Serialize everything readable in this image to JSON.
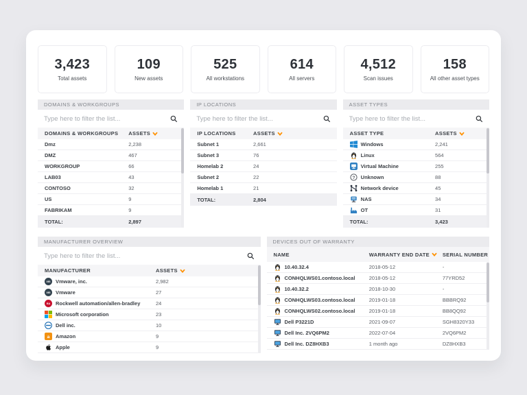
{
  "accent_color": "#ff9100",
  "filter_placeholder": "Type here to filter the list...",
  "stats": [
    {
      "value": "3,423",
      "label": "Total assets"
    },
    {
      "value": "109",
      "label": "New assets"
    },
    {
      "value": "525",
      "label": "All workstations"
    },
    {
      "value": "614",
      "label": "All servers"
    },
    {
      "value": "4,512",
      "label": "Scan issues"
    },
    {
      "value": "158",
      "label": "All other asset types"
    }
  ],
  "panels": {
    "domains": {
      "title": "DOMAINS & WORKGROUPS",
      "columns": [
        "DOMAINS & WORKGROUPS",
        "ASSETS"
      ],
      "sorted_by": "ASSETS",
      "rows": [
        {
          "label": "Dmz",
          "value": "2,238"
        },
        {
          "label": "DMZ",
          "value": "467"
        },
        {
          "label": "WORKGROUP",
          "value": "66"
        },
        {
          "label": "LAB03",
          "value": "43"
        },
        {
          "label": "CONTOSO",
          "value": "32"
        },
        {
          "label": "US",
          "value": "9"
        },
        {
          "label": "FABRIKAM",
          "value": "9"
        }
      ],
      "total_label": "TOTAL:",
      "total_value": "2,897"
    },
    "ip_locations": {
      "title": "IP LOCATIONS",
      "columns": [
        "IP LOCATIONS",
        "ASSETS"
      ],
      "sorted_by": "ASSETS",
      "rows": [
        {
          "label": "Subnet 1",
          "value": "2,661"
        },
        {
          "label": "Subnet 3",
          "value": "76"
        },
        {
          "label": "Homelab 2",
          "value": "24"
        },
        {
          "label": "Subnet 2",
          "value": "22"
        },
        {
          "label": "Homelab 1",
          "value": "21"
        }
      ],
      "total_label": "TOTAL:",
      "total_value": "2,804"
    },
    "asset_types": {
      "title": "ASSET TYPES",
      "columns": [
        "ASSET TYPE",
        "ASSETS"
      ],
      "sorted_by": "ASSETS",
      "rows": [
        {
          "icon": "windows",
          "label": "Windows",
          "value": "2,241"
        },
        {
          "icon": "linux",
          "label": "Linux",
          "value": "564"
        },
        {
          "icon": "vm",
          "label": "Virtual Machine",
          "value": "255"
        },
        {
          "icon": "unknown",
          "label": "Unknown",
          "value": "88"
        },
        {
          "icon": "network",
          "label": "Network device",
          "value": "45"
        },
        {
          "icon": "nas",
          "label": "NAS",
          "value": "34"
        },
        {
          "icon": "ot",
          "label": "OT",
          "value": "31"
        }
      ],
      "total_label": "TOTAL:",
      "total_value": "3,423"
    },
    "manufacturer": {
      "title": "MANUFACTURER OVERVIEW",
      "columns": [
        "MANUFACTURER",
        "ASSETS"
      ],
      "sorted_by": "ASSETS",
      "rows": [
        {
          "icon": "vmware",
          "label": "Vmware, inc.",
          "value": "2,982"
        },
        {
          "icon": "vmware",
          "label": "Vmware",
          "value": "27"
        },
        {
          "icon": "rockwell",
          "label": "Rockwell automation/allen-bradley",
          "value": "24"
        },
        {
          "icon": "microsoft",
          "label": "Microsoft corporation",
          "value": "23"
        },
        {
          "icon": "dell",
          "label": "Dell inc.",
          "value": "10"
        },
        {
          "icon": "amazon",
          "label": "Amazon",
          "value": "9"
        },
        {
          "icon": "apple",
          "label": "Apple",
          "value": "9"
        }
      ]
    },
    "warranty": {
      "title": "DEVICES OUT OF WARRANTY",
      "columns": [
        "NAME",
        "WARRANTY END DATE",
        "SERIAL NUMBER"
      ],
      "sorted_by": "WARRANTY END DATE",
      "rows": [
        {
          "icon": "linux",
          "name": "10.40.32.4",
          "date": "2018-05-12",
          "serial": "-"
        },
        {
          "icon": "linux",
          "name": "CONHQLWS01.contoso.local",
          "date": "2018-05-12",
          "serial": "77YRD52"
        },
        {
          "icon": "linux",
          "name": "10.40.32.2",
          "date": "2018-10-30",
          "serial": "-"
        },
        {
          "icon": "linux",
          "name": "CONHQLWS03.contoso.local",
          "date": "2019-01-18",
          "serial": "BBBRQ92"
        },
        {
          "icon": "linux",
          "name": "CONHQLWS02.contoso.local",
          "date": "2019-01-18",
          "serial": "BB8QQ92"
        },
        {
          "icon": "monitor",
          "name": "Dell P3221D",
          "date": "2021-09-07",
          "serial": "SGH8320Y33"
        },
        {
          "icon": "monitor",
          "name": "Dell Inc. 2VQ6PM2",
          "date": "2022-07-04",
          "serial": "2VQ6PM2"
        },
        {
          "icon": "monitor",
          "name": "Dell Inc. DZ8HXB3",
          "date": "1 month ago",
          "serial": "DZ8HXB3"
        }
      ]
    }
  }
}
